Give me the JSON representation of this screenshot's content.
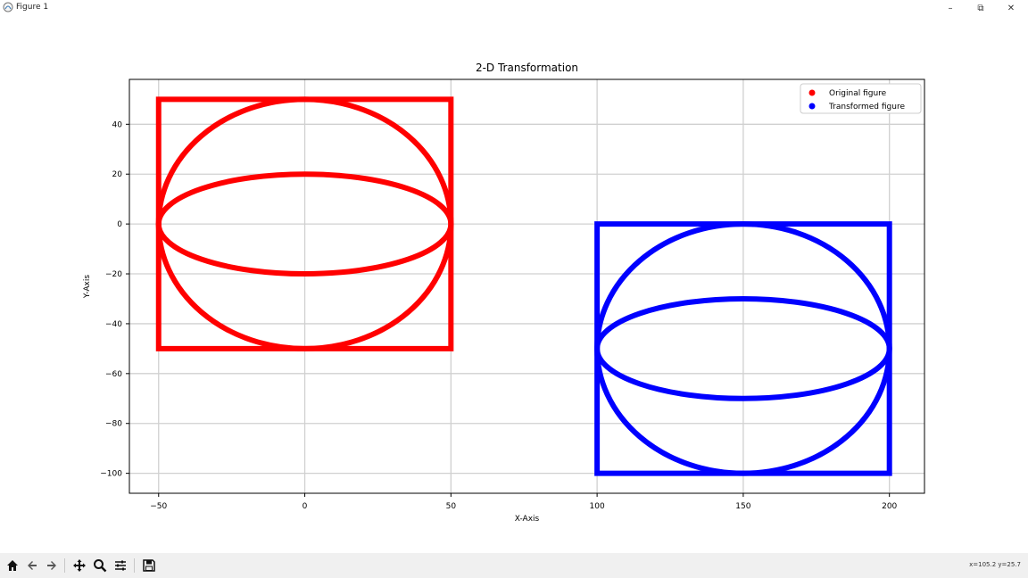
{
  "window": {
    "title": "Figure 1",
    "min_glyph": "–",
    "max_glyph": "⧉",
    "close_glyph": "✕"
  },
  "toolbar": {
    "buttons": [
      "home-icon",
      "back-icon",
      "forward-icon",
      "pan-icon",
      "zoom-icon",
      "configure-subplots-icon",
      "save-icon"
    ],
    "coords": "x=105.2 y=25.7"
  },
  "colors": {
    "original": "#ff0000",
    "transformed": "#0000ff",
    "grid": "#d0d0d0"
  },
  "chart_data": {
    "type": "scatter",
    "title": "2-D Transformation",
    "xlabel": "X-Axis",
    "ylabel": "Y-Axis",
    "xlim": [
      -60,
      212
    ],
    "ylim": [
      -108,
      58
    ],
    "xticks": [
      -50,
      0,
      50,
      100,
      150,
      200
    ],
    "yticks": [
      40,
      20,
      0,
      -20,
      -40,
      -60,
      -80,
      -100
    ],
    "grid": true,
    "legend_position": "top-right",
    "series": [
      {
        "name": "Original figure",
        "color": "#ff0000",
        "shapes": [
          {
            "kind": "rectangle",
            "x_range": [
              -50,
              50
            ],
            "y_range": [
              -50,
              50
            ]
          },
          {
            "kind": "ellipse",
            "center": [
              0,
              0
            ],
            "rx": 50,
            "ry": 50
          },
          {
            "kind": "ellipse",
            "center": [
              0,
              0
            ],
            "rx": 50,
            "ry": 20
          }
        ]
      },
      {
        "name": "Transformed figure",
        "color": "#0000ff",
        "shapes": [
          {
            "kind": "rectangle",
            "x_range": [
              100,
              200
            ],
            "y_range": [
              -100,
              0
            ]
          },
          {
            "kind": "ellipse",
            "center": [
              150,
              -50
            ],
            "rx": 50,
            "ry": 50
          },
          {
            "kind": "ellipse",
            "center": [
              150,
              -50
            ],
            "rx": 50,
            "ry": 20
          }
        ]
      }
    ]
  }
}
